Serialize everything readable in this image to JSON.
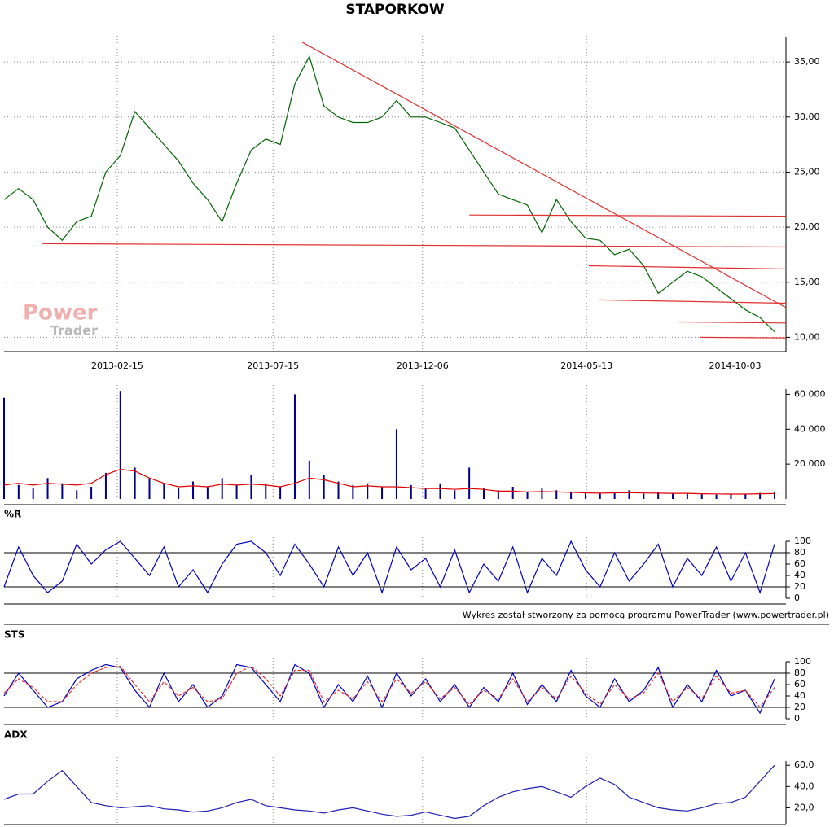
{
  "footer": "Wykres został stworzony za pomocą programu PowerTrader (www.powertrader.pl)",
  "chart_data": [
    {
      "type": "line",
      "title": "STAPORKOW",
      "annotations": [
        "Power",
        "Trader"
      ],
      "color": "#006400",
      "trendline_color": "#e03030",
      "xlim": [
        "2012-10-29",
        "2014-11-21"
      ],
      "xticks": [
        "2013-02-15",
        "2013-07-15",
        "2013-12-06",
        "2014-05-13",
        "2014-10-03"
      ],
      "ylim": [
        8.7,
        37.3
      ],
      "yticks": [
        {
          "value": 10,
          "label": "10,00"
        },
        {
          "value": 15,
          "label": "15,00"
        },
        {
          "value": 20,
          "label": "20,00"
        },
        {
          "value": 25,
          "label": "25,00"
        },
        {
          "value": 30,
          "label": "30,00"
        },
        {
          "value": 35,
          "label": "35,00"
        }
      ],
      "grid": true,
      "x": [
        "2012-10-29",
        "2012-11-12",
        "2012-11-26",
        "2012-12-10",
        "2012-12-24",
        "2013-01-07",
        "2013-01-21",
        "2013-02-04",
        "2013-02-18",
        "2013-03-04",
        "2013-03-18",
        "2013-04-01",
        "2013-04-15",
        "2013-04-29",
        "2013-05-13",
        "2013-05-27",
        "2013-06-10",
        "2013-06-24",
        "2013-07-08",
        "2013-07-22",
        "2013-08-05",
        "2013-08-19",
        "2013-09-02",
        "2013-09-16",
        "2013-09-30",
        "2013-10-14",
        "2013-10-28",
        "2013-11-11",
        "2013-11-25",
        "2013-12-09",
        "2013-12-23",
        "2014-01-06",
        "2014-01-20",
        "2014-02-03",
        "2014-02-17",
        "2014-03-03",
        "2014-03-17",
        "2014-03-31",
        "2014-04-14",
        "2014-04-28",
        "2014-05-12",
        "2014-05-26",
        "2014-06-09",
        "2014-06-23",
        "2014-07-07",
        "2014-07-21",
        "2014-08-04",
        "2014-08-18",
        "2014-09-01",
        "2014-09-15",
        "2014-09-29",
        "2014-10-13",
        "2014-10-27",
        "2014-11-10"
      ],
      "values": [
        22.5,
        23.5,
        22.5,
        20,
        18.8,
        20.5,
        21,
        25,
        26.5,
        30.5,
        29,
        27.5,
        26,
        24,
        22.5,
        20.5,
        24,
        27,
        28,
        27.5,
        33,
        35.5,
        31,
        30,
        29.5,
        29.5,
        30,
        31.5,
        30,
        30,
        29.5,
        29,
        27,
        25,
        23,
        22.5,
        22,
        19.5,
        22.5,
        20.5,
        19,
        18.8,
        17.5,
        18,
        16.5,
        14,
        15,
        16,
        15.5,
        14.5,
        13.5,
        12.5,
        11.8,
        10.5
      ],
      "trendlines": [
        {
          "x": [
            "2013-08-12",
            "2014-11-21"
          ],
          "values": [
            36.8,
            12.7
          ]
        },
        {
          "x": [
            "2012-12-05",
            "2014-11-21"
          ],
          "values": [
            18.5,
            18.2
          ]
        },
        {
          "x": [
            "2014-01-20",
            "2014-11-21"
          ],
          "values": [
            21.1,
            21
          ]
        },
        {
          "x": [
            "2014-05-15",
            "2014-11-21"
          ],
          "values": [
            16.5,
            16.2
          ]
        },
        {
          "x": [
            "2014-05-25",
            "2014-11-21"
          ],
          "values": [
            13.4,
            13.1
          ]
        },
        {
          "x": [
            "2014-08-10",
            "2014-11-21"
          ],
          "values": [
            11.4,
            11.3
          ]
        },
        {
          "x": [
            "2014-08-30",
            "2014-11-21"
          ],
          "values": [
            10,
            9.95
          ]
        }
      ]
    },
    {
      "type": "bar",
      "color": "#00008b",
      "ylim": [
        0,
        63000
      ],
      "yticks": [
        {
          "value": 20000,
          "label": "20 000"
        },
        {
          "value": 40000,
          "label": "40 000"
        },
        {
          "value": 60000,
          "label": "60 000"
        }
      ],
      "x": [
        "2012-10-29",
        "2012-11-12",
        "2012-11-26",
        "2012-12-10",
        "2012-12-24",
        "2013-01-07",
        "2013-01-21",
        "2013-02-04",
        "2013-02-18",
        "2013-03-04",
        "2013-03-18",
        "2013-04-01",
        "2013-04-15",
        "2013-04-29",
        "2013-05-13",
        "2013-05-27",
        "2013-06-10",
        "2013-06-24",
        "2013-07-08",
        "2013-07-22",
        "2013-08-05",
        "2013-08-19",
        "2013-09-02",
        "2013-09-16",
        "2013-09-30",
        "2013-10-14",
        "2013-10-28",
        "2013-11-11",
        "2013-11-25",
        "2013-12-09",
        "2013-12-23",
        "2014-01-06",
        "2014-01-20",
        "2014-02-03",
        "2014-02-17",
        "2014-03-03",
        "2014-03-17",
        "2014-03-31",
        "2014-04-14",
        "2014-04-28",
        "2014-05-12",
        "2014-05-26",
        "2014-06-09",
        "2014-06-23",
        "2014-07-07",
        "2014-07-21",
        "2014-08-04",
        "2014-08-18",
        "2014-09-01",
        "2014-09-15",
        "2014-09-29",
        "2014-10-13",
        "2014-10-27",
        "2014-11-10"
      ],
      "values": [
        58000,
        8000,
        6000,
        12000,
        9000,
        5000,
        7000,
        15000,
        62000,
        18000,
        12000,
        9000,
        6000,
        10000,
        7000,
        12000,
        8000,
        14000,
        9000,
        7000,
        60000,
        22000,
        14000,
        10000,
        8000,
        9000,
        7000,
        40000,
        8000,
        6000,
        9000,
        5000,
        18000,
        6000,
        5000,
        7000,
        4000,
        6000,
        5000,
        4000,
        3500,
        3000,
        4000,
        5000,
        3000,
        4000,
        3000,
        3500,
        3000,
        2500,
        3000,
        2800,
        3500,
        4000
      ],
      "moving_average": {
        "color": "#e00000",
        "values": [
          8000,
          9000,
          8000,
          9000,
          8500,
          8000,
          9000,
          14000,
          17000,
          16000,
          12000,
          9000,
          7000,
          7500,
          7000,
          8500,
          8000,
          8500,
          8000,
          7000,
          9000,
          12000,
          11000,
          9000,
          7000,
          7500,
          7000,
          7000,
          6500,
          6000,
          6000,
          5500,
          6000,
          5500,
          4500,
          4500,
          4000,
          4200,
          4000,
          3800,
          3500,
          3300,
          3500,
          3600,
          3400,
          3300,
          3200,
          3200,
          3000,
          2900,
          2800,
          2800,
          3000,
          3100
        ]
      }
    },
    {
      "type": "line",
      "title": "%R",
      "color": "#0000c0",
      "levels": [
        20,
        80
      ],
      "ylim": [
        0,
        100
      ],
      "yticks": [
        0,
        20,
        40,
        60,
        80,
        100
      ],
      "x": [
        "2012-10-29",
        "2012-11-12",
        "2012-11-26",
        "2012-12-10",
        "2012-12-24",
        "2013-01-07",
        "2013-01-21",
        "2013-02-04",
        "2013-02-18",
        "2013-03-04",
        "2013-03-18",
        "2013-04-01",
        "2013-04-15",
        "2013-04-29",
        "2013-05-13",
        "2013-05-27",
        "2013-06-10",
        "2013-06-24",
        "2013-07-08",
        "2013-07-22",
        "2013-08-05",
        "2013-08-19",
        "2013-09-02",
        "2013-09-16",
        "2013-09-30",
        "2013-10-14",
        "2013-10-28",
        "2013-11-11",
        "2013-11-25",
        "2013-12-09",
        "2013-12-23",
        "2014-01-06",
        "2014-01-20",
        "2014-02-03",
        "2014-02-17",
        "2014-03-03",
        "2014-03-17",
        "2014-03-31",
        "2014-04-14",
        "2014-04-28",
        "2014-05-12",
        "2014-05-26",
        "2014-06-09",
        "2014-06-23",
        "2014-07-07",
        "2014-07-21",
        "2014-08-04",
        "2014-08-18",
        "2014-09-01",
        "2014-09-15",
        "2014-09-29",
        "2014-10-13",
        "2014-10-27",
        "2014-11-10"
      ],
      "values": [
        20,
        90,
        40,
        10,
        30,
        95,
        60,
        85,
        100,
        70,
        40,
        90,
        20,
        50,
        10,
        60,
        95,
        100,
        80,
        40,
        95,
        60,
        20,
        90,
        40,
        80,
        10,
        90,
        50,
        70,
        20,
        85,
        10,
        60,
        30,
        90,
        10,
        70,
        40,
        100,
        50,
        20,
        80,
        30,
        60,
        95,
        20,
        70,
        40,
        90,
        30,
        80,
        10,
        95
      ]
    },
    {
      "type": "line",
      "title": "STS",
      "levels": [
        20,
        80
      ],
      "ylim": [
        0,
        100
      ],
      "yticks": [
        0,
        20,
        40,
        60,
        80,
        100
      ],
      "x": [
        "2012-10-29",
        "2012-11-12",
        "2012-11-26",
        "2012-12-10",
        "2012-12-24",
        "2013-01-07",
        "2013-01-21",
        "2013-02-04",
        "2013-02-18",
        "2013-03-04",
        "2013-03-18",
        "2013-04-01",
        "2013-04-15",
        "2013-04-29",
        "2013-05-13",
        "2013-05-27",
        "2013-06-10",
        "2013-06-24",
        "2013-07-08",
        "2013-07-22",
        "2013-08-05",
        "2013-08-19",
        "2013-09-02",
        "2013-09-16",
        "2013-09-30",
        "2013-10-14",
        "2013-10-28",
        "2013-11-11",
        "2013-11-25",
        "2013-12-09",
        "2013-12-23",
        "2014-01-06",
        "2014-01-20",
        "2014-02-03",
        "2014-02-17",
        "2014-03-03",
        "2014-03-17",
        "2014-03-31",
        "2014-04-14",
        "2014-04-28",
        "2014-05-12",
        "2014-05-26",
        "2014-06-09",
        "2014-06-23",
        "2014-07-07",
        "2014-07-21",
        "2014-08-04",
        "2014-08-18",
        "2014-09-01",
        "2014-09-15",
        "2014-09-29",
        "2014-10-13",
        "2014-10-27",
        "2014-11-10"
      ],
      "series": [
        {
          "color": "#0000c0",
          "values": [
            40,
            80,
            50,
            20,
            30,
            70,
            85,
            95,
            90,
            50,
            20,
            80,
            30,
            60,
            20,
            40,
            95,
            90,
            60,
            30,
            95,
            80,
            20,
            60,
            30,
            75,
            20,
            80,
            40,
            70,
            30,
            60,
            20,
            55,
            30,
            80,
            25,
            60,
            30,
            85,
            40,
            20,
            70,
            30,
            50,
            90,
            20,
            60,
            30,
            85,
            40,
            50,
            10,
            70
          ]
        },
        {
          "color": "#e03030",
          "dashed": true,
          "values": [
            45,
            70,
            55,
            30,
            30,
            60,
            80,
            90,
            92,
            60,
            30,
            65,
            40,
            55,
            30,
            35,
            80,
            92,
            70,
            40,
            85,
            85,
            30,
            50,
            35,
            65,
            30,
            70,
            45,
            65,
            35,
            55,
            25,
            50,
            35,
            70,
            30,
            55,
            35,
            75,
            45,
            25,
            60,
            35,
            45,
            80,
            30,
            55,
            35,
            75,
            45,
            50,
            20,
            55
          ]
        }
      ]
    },
    {
      "type": "line",
      "title": "ADX",
      "color": "#2020b0",
      "ylim": [
        5,
        64
      ],
      "yticks": [
        {
          "value": 20,
          "label": "20,0"
        },
        {
          "value": 40,
          "label": "40,0"
        },
        {
          "value": 60,
          "label": "60,0"
        }
      ],
      "x": [
        "2012-10-29",
        "2012-11-12",
        "2012-11-26",
        "2012-12-10",
        "2012-12-24",
        "2013-01-07",
        "2013-01-21",
        "2013-02-04",
        "2013-02-18",
        "2013-03-04",
        "2013-03-18",
        "2013-04-01",
        "2013-04-15",
        "2013-04-29",
        "2013-05-13",
        "2013-05-27",
        "2013-06-10",
        "2013-06-24",
        "2013-07-08",
        "2013-07-22",
        "2013-08-05",
        "2013-08-19",
        "2013-09-02",
        "2013-09-16",
        "2013-09-30",
        "2013-10-14",
        "2013-10-28",
        "2013-11-11",
        "2013-11-25",
        "2013-12-09",
        "2013-12-23",
        "2014-01-06",
        "2014-01-20",
        "2014-02-03",
        "2014-02-17",
        "2014-03-03",
        "2014-03-17",
        "2014-03-31",
        "2014-04-14",
        "2014-04-28",
        "2014-05-12",
        "2014-05-26",
        "2014-06-09",
        "2014-06-23",
        "2014-07-07",
        "2014-07-21",
        "2014-08-04",
        "2014-08-18",
        "2014-09-01",
        "2014-09-15",
        "2014-09-29",
        "2014-10-13",
        "2014-10-27",
        "2014-11-10"
      ],
      "values": [
        28,
        33,
        33,
        45,
        55,
        40,
        25,
        22,
        20,
        21,
        22,
        19,
        18,
        16,
        17,
        20,
        25,
        28,
        22,
        20,
        18,
        17,
        15,
        18,
        20,
        17,
        14,
        12,
        13,
        16,
        13,
        10,
        12,
        22,
        30,
        35,
        38,
        40,
        35,
        30,
        40,
        48,
        42,
        30,
        25,
        20,
        18,
        17,
        20,
        24,
        25,
        30,
        45,
        60
      ]
    }
  ]
}
